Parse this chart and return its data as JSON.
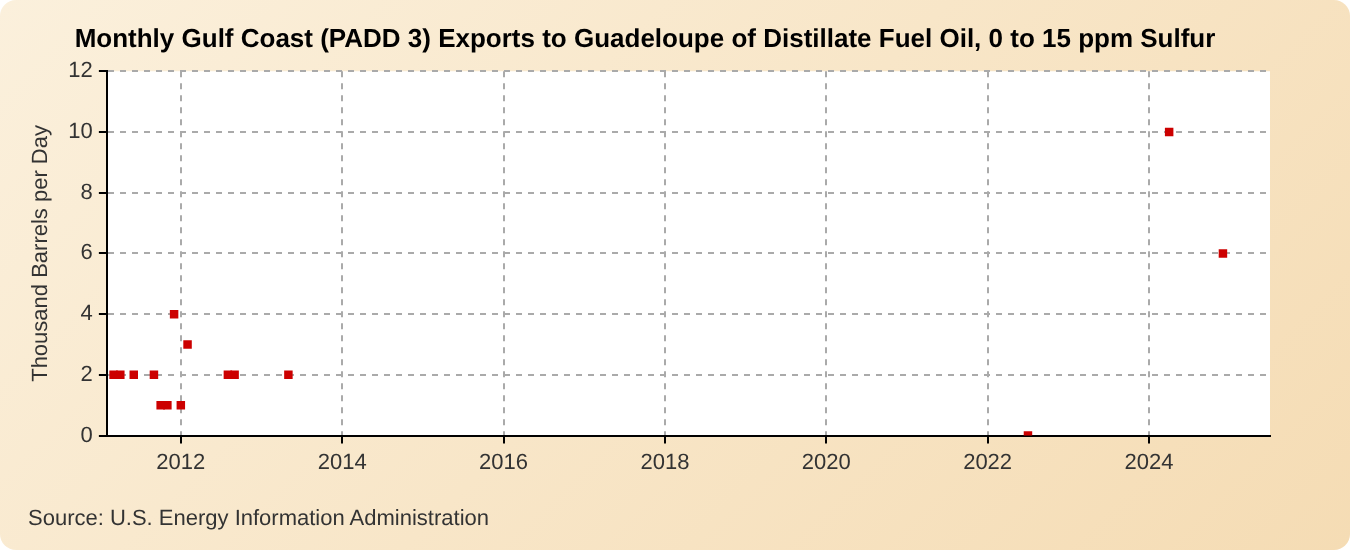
{
  "chart_data": {
    "type": "scatter",
    "title": "Monthly Gulf Coast (PADD 3) Exports to Guadeloupe of Distillate Fuel Oil, 0 to 15 ppm Sulfur",
    "ylabel": "Thousand Barrels per Day",
    "x": [
      "2011-03",
      "2011-04",
      "2011-06",
      "2011-09",
      "2011-10",
      "2011-11",
      "2011-12",
      "2012-01",
      "2012-02",
      "2012-08",
      "2012-09",
      "2013-05",
      "2022-07",
      "2024-04",
      "2024-12"
    ],
    "series": [
      {
        "color": "#cc0000",
        "values": [
          2,
          2,
          2,
          2,
          1,
          1,
          4,
          1,
          3,
          2,
          2,
          2,
          0,
          10,
          6
        ]
      }
    ],
    "xlim": [
      "2011-02",
      "2025-07"
    ],
    "xticks": [
      "2012",
      "2014",
      "2016",
      "2018",
      "2020",
      "2022",
      "2024"
    ],
    "ylim": [
      0,
      12
    ],
    "yticks": [
      0,
      2,
      4,
      6,
      8,
      10,
      12
    ],
    "grid": true,
    "marker": "square",
    "legend": false,
    "annotations": [
      "Source: U.S. Energy Information Administration"
    ]
  }
}
